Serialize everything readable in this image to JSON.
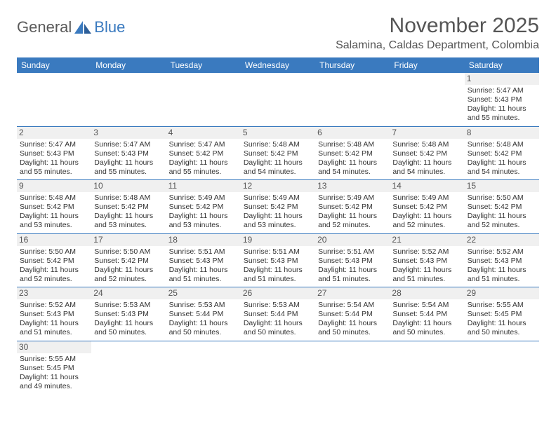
{
  "logo": {
    "general": "General",
    "blue": "Blue"
  },
  "header": {
    "title": "November 2025",
    "location": "Salamina, Caldas Department, Colombia"
  },
  "colors": {
    "header_bar": "#3a7abf",
    "row_divider": "#3a7abf",
    "background": "#ffffff",
    "text": "#333333",
    "muted_text": "#555555",
    "daynum_bg": "#f0f0f0"
  },
  "day_headers": [
    "Sunday",
    "Monday",
    "Tuesday",
    "Wednesday",
    "Thursday",
    "Friday",
    "Saturday"
  ],
  "weeks": [
    [
      null,
      null,
      null,
      null,
      null,
      null,
      {
        "n": "1",
        "r": "5:47 AM",
        "s": "5:43 PM",
        "d": "11 hours and 55 minutes."
      }
    ],
    [
      {
        "n": "2",
        "r": "5:47 AM",
        "s": "5:43 PM",
        "d": "11 hours and 55 minutes."
      },
      {
        "n": "3",
        "r": "5:47 AM",
        "s": "5:43 PM",
        "d": "11 hours and 55 minutes."
      },
      {
        "n": "4",
        "r": "5:47 AM",
        "s": "5:42 PM",
        "d": "11 hours and 55 minutes."
      },
      {
        "n": "5",
        "r": "5:48 AM",
        "s": "5:42 PM",
        "d": "11 hours and 54 minutes."
      },
      {
        "n": "6",
        "r": "5:48 AM",
        "s": "5:42 PM",
        "d": "11 hours and 54 minutes."
      },
      {
        "n": "7",
        "r": "5:48 AM",
        "s": "5:42 PM",
        "d": "11 hours and 54 minutes."
      },
      {
        "n": "8",
        "r": "5:48 AM",
        "s": "5:42 PM",
        "d": "11 hours and 54 minutes."
      }
    ],
    [
      {
        "n": "9",
        "r": "5:48 AM",
        "s": "5:42 PM",
        "d": "11 hours and 53 minutes."
      },
      {
        "n": "10",
        "r": "5:48 AM",
        "s": "5:42 PM",
        "d": "11 hours and 53 minutes."
      },
      {
        "n": "11",
        "r": "5:49 AM",
        "s": "5:42 PM",
        "d": "11 hours and 53 minutes."
      },
      {
        "n": "12",
        "r": "5:49 AM",
        "s": "5:42 PM",
        "d": "11 hours and 53 minutes."
      },
      {
        "n": "13",
        "r": "5:49 AM",
        "s": "5:42 PM",
        "d": "11 hours and 52 minutes."
      },
      {
        "n": "14",
        "r": "5:49 AM",
        "s": "5:42 PM",
        "d": "11 hours and 52 minutes."
      },
      {
        "n": "15",
        "r": "5:50 AM",
        "s": "5:42 PM",
        "d": "11 hours and 52 minutes."
      }
    ],
    [
      {
        "n": "16",
        "r": "5:50 AM",
        "s": "5:42 PM",
        "d": "11 hours and 52 minutes."
      },
      {
        "n": "17",
        "r": "5:50 AM",
        "s": "5:42 PM",
        "d": "11 hours and 52 minutes."
      },
      {
        "n": "18",
        "r": "5:51 AM",
        "s": "5:43 PM",
        "d": "11 hours and 51 minutes."
      },
      {
        "n": "19",
        "r": "5:51 AM",
        "s": "5:43 PM",
        "d": "11 hours and 51 minutes."
      },
      {
        "n": "20",
        "r": "5:51 AM",
        "s": "5:43 PM",
        "d": "11 hours and 51 minutes."
      },
      {
        "n": "21",
        "r": "5:52 AM",
        "s": "5:43 PM",
        "d": "11 hours and 51 minutes."
      },
      {
        "n": "22",
        "r": "5:52 AM",
        "s": "5:43 PM",
        "d": "11 hours and 51 minutes."
      }
    ],
    [
      {
        "n": "23",
        "r": "5:52 AM",
        "s": "5:43 PM",
        "d": "11 hours and 51 minutes."
      },
      {
        "n": "24",
        "r": "5:53 AM",
        "s": "5:43 PM",
        "d": "11 hours and 50 minutes."
      },
      {
        "n": "25",
        "r": "5:53 AM",
        "s": "5:44 PM",
        "d": "11 hours and 50 minutes."
      },
      {
        "n": "26",
        "r": "5:53 AM",
        "s": "5:44 PM",
        "d": "11 hours and 50 minutes."
      },
      {
        "n": "27",
        "r": "5:54 AM",
        "s": "5:44 PM",
        "d": "11 hours and 50 minutes."
      },
      {
        "n": "28",
        "r": "5:54 AM",
        "s": "5:44 PM",
        "d": "11 hours and 50 minutes."
      },
      {
        "n": "29",
        "r": "5:55 AM",
        "s": "5:45 PM",
        "d": "11 hours and 50 minutes."
      }
    ],
    [
      {
        "n": "30",
        "r": "5:55 AM",
        "s": "5:45 PM",
        "d": "11 hours and 49 minutes."
      },
      null,
      null,
      null,
      null,
      null,
      null
    ]
  ],
  "labels": {
    "sunrise": "Sunrise:",
    "sunset": "Sunset:",
    "daylight": "Daylight:"
  }
}
